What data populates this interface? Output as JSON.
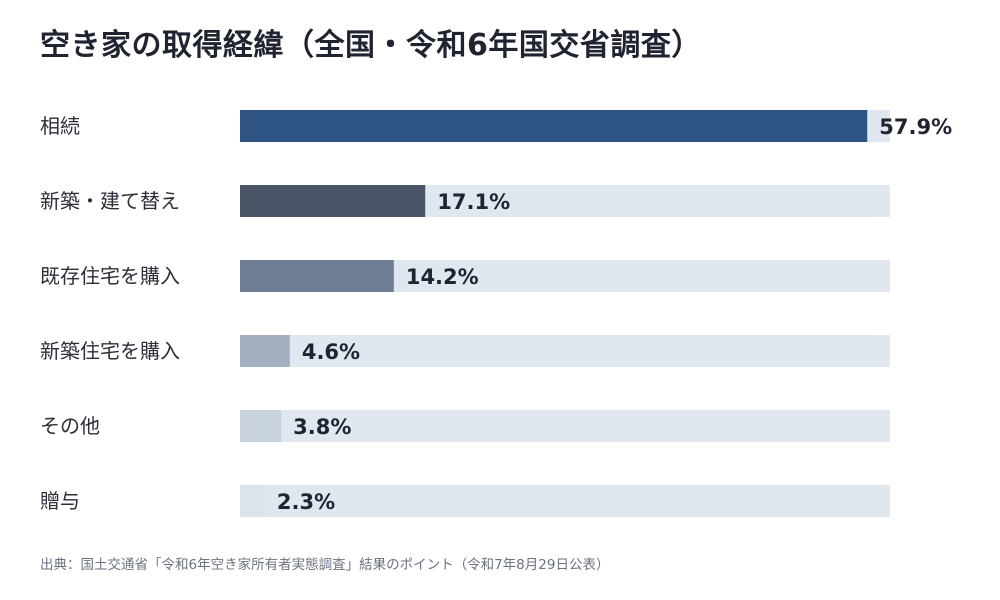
{
  "title": "空き家の取得経緯（全国・令和6年国交省調査）",
  "source": "出典：国土交通省「令和6年空き家所有者実態調査」結果のポイント（令和7年8月29日公表）",
  "chart_data": {
    "type": "bar",
    "orientation": "horizontal",
    "title": "空き家の取得経緯（全国・令和6年国交省調査）",
    "categories": [
      "相続",
      "新築・建て替え",
      "既存住宅を購入",
      "新築住宅を購入",
      "その他",
      "贈与"
    ],
    "values": [
      57.9,
      17.1,
      14.2,
      4.6,
      3.8,
      2.3
    ],
    "value_labels": [
      "57.9%",
      "17.1%",
      "14.2%",
      "4.6%",
      "3.8%",
      "2.3%"
    ],
    "unit": "%",
    "xlim": [
      0,
      60
    ],
    "grid": false,
    "legend": "none",
    "colors": {
      "track": "#e1e7ef",
      "bars": [
        "#2e5484",
        "#4a5568",
        "#6e7d94",
        "#a2b0c0",
        "#c9d3dd",
        "#dde4ec"
      ]
    }
  }
}
